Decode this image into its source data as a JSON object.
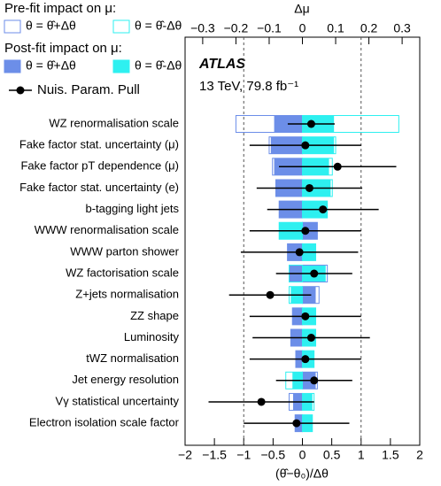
{
  "chart_data": {
    "type": "ranking",
    "legend": {
      "prefit_title": "Pre-fit impact on μ:",
      "postfit_title": "Post-fit impact on μ:"
    },
    "atlas_label": "ATLAS",
    "energy_label": "13 TeV, 79.8 fb⁻¹",
    "x2_label": "Δμ",
    "xlabel": "(θ̂−θ₀)/Δθ",
    "categories": [
      "WZ renormalisation scale",
      "Fake factor stat. uncertainty (μ)",
      "Fake factor pT dependence (μ)",
      "Fake factor stat. uncertainty (e)",
      "b-tagging light jets",
      "WWW renormalisation scale",
      "WWW parton shower",
      "WZ factorisation scale",
      "Z+jets normalisation",
      "ZZ shape",
      "Luminosity",
      "tWZ normalisation",
      "Jet energy resolution",
      "Vγ statistical uncertainty",
      "Electron isolation scale factor"
    ],
    "impact_series": [
      {
        "name": "θ = θ̂+Δθ",
        "stage": "prefit",
        "color": "#6c8ee8",
        "values": [
          -0.2,
          -0.1,
          -0.09,
          -0.08,
          -0.07,
          0.045,
          -0.045,
          0.075,
          0.05,
          -0.03,
          -0.035,
          -0.02,
          0.045,
          -0.04,
          -0.022
        ]
      },
      {
        "name": "θ = θ̂-Δθ",
        "stage": "prefit",
        "color": "#2ef0f0",
        "values": [
          0.29,
          0.1,
          0.09,
          0.09,
          0.075,
          -0.07,
          0.04,
          -0.04,
          -0.04,
          0.04,
          0.04,
          0.035,
          -0.05,
          0.035,
          0.03
        ]
      },
      {
        "name": "θ = θ̂+Δθ",
        "stage": "postfit",
        "color": "#6c8ee8",
        "values": [
          -0.085,
          -0.095,
          -0.085,
          -0.08,
          -0.07,
          0.045,
          -0.045,
          -0.04,
          0.04,
          -0.03,
          -0.035,
          -0.02,
          0.04,
          -0.028,
          -0.022
        ]
      },
      {
        "name": "θ = θ̂-Δθ",
        "stage": "postfit",
        "color": "#2ef0f0",
        "values": [
          0.095,
          0.095,
          0.08,
          0.085,
          0.075,
          -0.07,
          0.04,
          0.07,
          -0.035,
          0.04,
          0.04,
          0.035,
          -0.03,
          0.03,
          0.03
        ]
      }
    ],
    "pulls": {
      "name": "Nuis. Param. Pull",
      "color": "#000000",
      "values": [
        0.15,
        0.05,
        0.6,
        0.12,
        0.35,
        0.05,
        -0.05,
        0.2,
        -0.55,
        0.05,
        0.15,
        0.05,
        0.2,
        -0.7,
        -0.1
      ],
      "errors": [
        0.4,
        0.95,
        1.0,
        0.9,
        0.95,
        0.95,
        1.0,
        0.65,
        0.7,
        0.95,
        1.0,
        0.95,
        0.65,
        0.9,
        0.9
      ]
    },
    "x2lim": [
      -0.353,
      0.353
    ],
    "x2ticks": [
      {
        "value": -0.3,
        "label": "−0.3"
      },
      {
        "value": -0.2,
        "label": "−0.2"
      },
      {
        "value": -0.1,
        "label": "−0.1"
      },
      0,
      0.1,
      0.2,
      0.3
    ],
    "xlim": [
      -2,
      2
    ],
    "xticks": [
      {
        "value": -2,
        "label": "−2"
      },
      {
        "value": -1.5,
        "label": "−1.5"
      },
      {
        "value": -1,
        "label": "−1"
      },
      {
        "value": -0.5,
        "label": "−0.5"
      },
      0,
      0.5,
      1,
      1.5,
      2
    ],
    "pull_reference_lines": [
      -1,
      1
    ]
  }
}
